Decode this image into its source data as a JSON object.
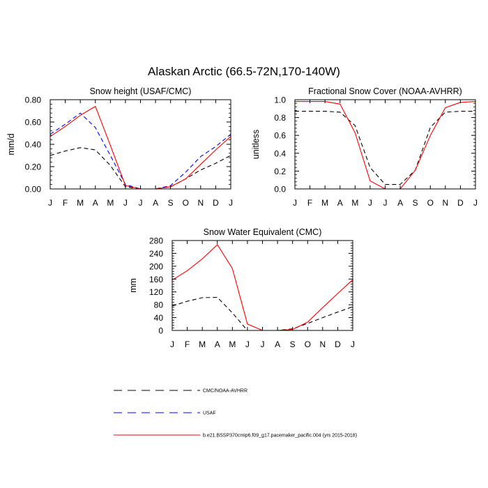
{
  "figure": {
    "title": "Alaskan Arctic (66.5-72N,170-140W)"
  },
  "series_styles": {
    "CMC/NOAA-AVHRR": {
      "color": "#000000",
      "dash": "6,4"
    },
    "USAF": {
      "color": "#0000ff",
      "dash": "6,4"
    },
    "model": {
      "color": "#ff0000",
      "dash": ""
    }
  },
  "legend": {
    "entries": [
      {
        "label": "CMC/NOAA-AVHRR",
        "style": "CMC/NOAA-AVHRR"
      },
      {
        "label": "USAF",
        "style": "USAF"
      },
      {
        "label": "b.e21.BSSP370cmip6.f09_g17.pacemaker_pacific.004 (yrs 2015-2018)",
        "style": "model"
      }
    ]
  },
  "chart_data": [
    {
      "id": "snow-height",
      "type": "line",
      "title": "Snow height (USAF/CMC)",
      "xlabel": "",
      "ylabel": "mm/d",
      "categories": [
        "J",
        "F",
        "M",
        "A",
        "M",
        "J",
        "J",
        "A",
        "S",
        "O",
        "N",
        "D",
        "J"
      ],
      "ylim": [
        0,
        0.8
      ],
      "yticks": [
        0,
        0.2,
        0.4,
        0.6,
        0.8
      ],
      "ytick_labels": [
        "0.00",
        "0.20",
        "0.40",
        "0.60",
        "0.80"
      ],
      "series": [
        {
          "name": "CMC/NOAA-AVHRR",
          "style": "CMC/NOAA-AVHRR",
          "values": [
            0.3,
            0.34,
            0.37,
            0.35,
            0.21,
            0.02,
            0.0,
            0.0,
            0.02,
            0.09,
            0.17,
            0.23,
            0.3
          ]
        },
        {
          "name": "USAF",
          "style": "USAF",
          "values": [
            0.49,
            0.58,
            0.68,
            0.55,
            0.3,
            0.04,
            0.0,
            0.0,
            0.03,
            0.15,
            0.29,
            0.38,
            0.49
          ]
        },
        {
          "name": "b.e21.BSSP370cmip6.f09_g17.pacemaker_pacific.004 (yrs 2015-2018)",
          "style": "model",
          "values": [
            0.47,
            0.56,
            0.66,
            0.74,
            0.39,
            0.03,
            0.0,
            0.0,
            0.02,
            0.09,
            0.22,
            0.35,
            0.47
          ]
        }
      ]
    },
    {
      "id": "fractional-snow-cover",
      "type": "line",
      "title": "Fractional Snow Cover (NOAA-AVHRR)",
      "xlabel": "",
      "ylabel": "unitless",
      "categories": [
        "J",
        "F",
        "M",
        "A",
        "M",
        "J",
        "J",
        "A",
        "S",
        "O",
        "N",
        "D",
        "J"
      ],
      "ylim": [
        0,
        1.0
      ],
      "yticks": [
        0,
        0.2,
        0.4,
        0.6,
        0.8,
        1.0
      ],
      "ytick_labels": [
        "0.0",
        "0.2",
        "0.4",
        "0.6",
        "0.8",
        "1.0"
      ],
      "series": [
        {
          "name": "CMC/NOAA-AVHRR",
          "style": "CMC/NOAA-AVHRR",
          "values": [
            0.87,
            0.87,
            0.87,
            0.86,
            0.71,
            0.24,
            0.05,
            0.05,
            0.21,
            0.69,
            0.86,
            0.87,
            0.87
          ]
        },
        {
          "name": "b.e21.BSSP370cmip6.f09_g17.pacemaker_pacific.004 (yrs 2015-2018)",
          "style": "model",
          "values": [
            0.98,
            0.98,
            0.98,
            0.95,
            0.63,
            0.09,
            0.0,
            0.0,
            0.21,
            0.6,
            0.91,
            0.97,
            0.98
          ]
        }
      ]
    },
    {
      "id": "snow-water-equivalent",
      "type": "line",
      "title": "Snow Water Equivalent (CMC)",
      "xlabel": "",
      "ylabel": "mm",
      "categories": [
        "J",
        "F",
        "M",
        "A",
        "M",
        "J",
        "J",
        "A",
        "S",
        "O",
        "N",
        "D",
        "J"
      ],
      "ylim": [
        0,
        280
      ],
      "yticks": [
        0,
        40,
        80,
        120,
        160,
        200,
        240,
        280
      ],
      "ytick_labels": [
        "0",
        "40",
        "80",
        "120",
        "160",
        "200",
        "240",
        "280"
      ],
      "series": [
        {
          "name": "CMC/NOAA-AVHRR",
          "style": "CMC/NOAA-AVHRR",
          "values": [
            76,
            91,
            102,
            103,
            55,
            0,
            0,
            0,
            5,
            22,
            40,
            57,
            74
          ]
        },
        {
          "name": "b.e21.BSSP370cmip6.f09_g17.pacemaker_pacific.004 (yrs 2015-2018)",
          "style": "model",
          "values": [
            157,
            186,
            223,
            267,
            193,
            20,
            0,
            0,
            3,
            26,
            71,
            115,
            158
          ]
        }
      ]
    }
  ]
}
